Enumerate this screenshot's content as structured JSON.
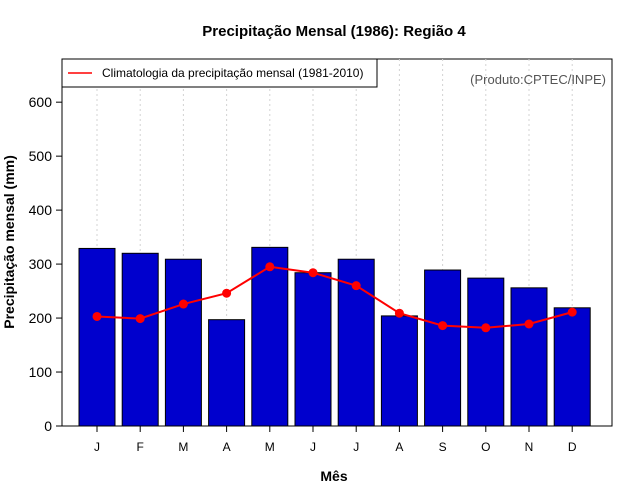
{
  "chart_data": {
    "type": "bar",
    "title": "Precipitação Mensal (1986): Região 4",
    "xlabel": "Mês",
    "ylabel": "Precipitação mensal (mm)",
    "credit": "(Produto:CPTEC/INPE)",
    "categories": [
      "J",
      "F",
      "M",
      "A",
      "M",
      "J",
      "J",
      "A",
      "S",
      "O",
      "N",
      "D"
    ],
    "ylim": [
      0,
      680
    ],
    "yticks": [
      0,
      100,
      200,
      300,
      400,
      500,
      600
    ],
    "grid": true,
    "legend_position": "top-left",
    "series": [
      {
        "name": "Precipitação mensal (1986)",
        "kind": "bar",
        "color": "#0000CD",
        "values": [
          329,
          320,
          309,
          197,
          331,
          284,
          309,
          204,
          289,
          274,
          256,
          219
        ]
      },
      {
        "name": "Climatologia da precipitação mensal (1981-2010)",
        "kind": "line",
        "color": "#FF0000",
        "values": [
          203,
          199,
          226,
          246,
          295,
          284,
          260,
          209,
          186,
          182,
          189,
          211
        ]
      }
    ]
  }
}
